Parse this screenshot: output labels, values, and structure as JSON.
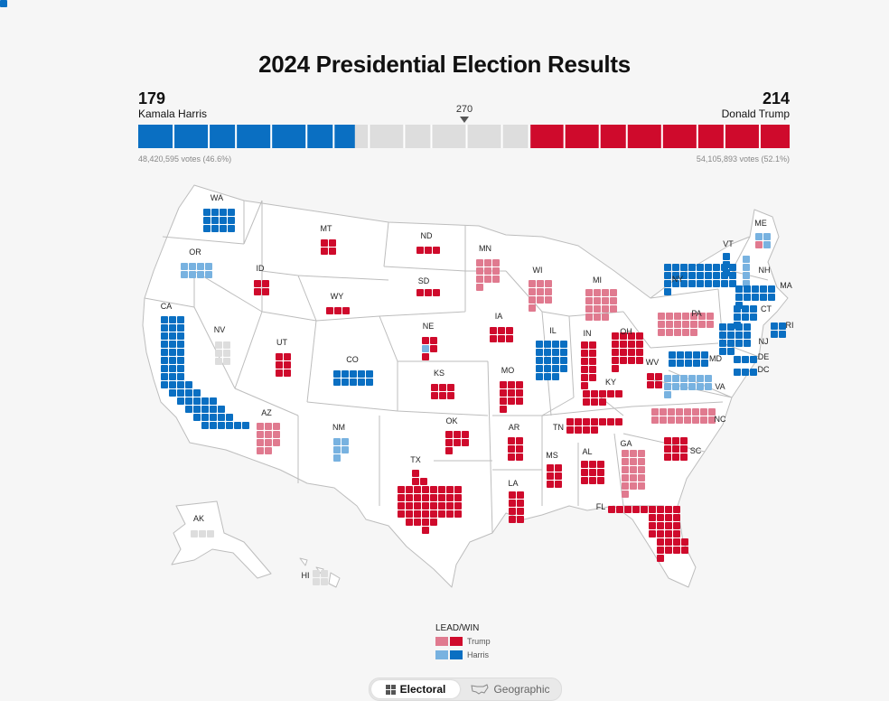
{
  "title": "2024 Presidential Election Results",
  "candidates": {
    "left": {
      "name": "Kamala Harris",
      "ev": "179",
      "votes": "48,420,595 votes (46.6%)",
      "color": "#0a6fc2"
    },
    "right": {
      "name": "Donald Trump",
      "ev": "214",
      "votes": "54,105,893 votes (52.1%)",
      "color": "#cf0a2c"
    }
  },
  "threshold": "270",
  "colors": {
    "trump_win": "#cf0a2c",
    "trump_lead": "#e07a8f",
    "harris_win": "#0a6fc2",
    "harris_lead": "#78b2e0",
    "undecided": "#dddddd",
    "map_fill": "#ffffff",
    "map_border": "#bdbdbd"
  },
  "bar_segments": [
    {
      "status": "harris_win",
      "ev": 179
    },
    {
      "status": "undecided",
      "ev": 145
    },
    {
      "status": "trump_win",
      "ev": 214
    }
  ],
  "states": [
    {
      "abbr": "WA",
      "ev": 12,
      "status": "harris_win"
    },
    {
      "abbr": "OR",
      "ev": 8,
      "status": "harris_lead"
    },
    {
      "abbr": "CA",
      "ev": 54,
      "status": "harris_win"
    },
    {
      "abbr": "NV",
      "ev": 6,
      "status": "undecided"
    },
    {
      "abbr": "ID",
      "ev": 4,
      "status": "trump_win"
    },
    {
      "abbr": "MT",
      "ev": 4,
      "status": "trump_win"
    },
    {
      "abbr": "WY",
      "ev": 3,
      "status": "trump_win"
    },
    {
      "abbr": "UT",
      "ev": 6,
      "status": "trump_win"
    },
    {
      "abbr": "AZ",
      "ev": 11,
      "status": "trump_lead"
    },
    {
      "abbr": "CO",
      "ev": 10,
      "status": "harris_win"
    },
    {
      "abbr": "NM",
      "ev": 5,
      "status": "harris_lead"
    },
    {
      "abbr": "ND",
      "ev": 3,
      "status": "trump_win"
    },
    {
      "abbr": "SD",
      "ev": 3,
      "status": "trump_win"
    },
    {
      "abbr": "NE",
      "ev": 5,
      "status": "mixed"
    },
    {
      "abbr": "KS",
      "ev": 6,
      "status": "trump_win"
    },
    {
      "abbr": "OK",
      "ev": 7,
      "status": "trump_win"
    },
    {
      "abbr": "TX",
      "ev": 40,
      "status": "trump_win"
    },
    {
      "abbr": "MN",
      "ev": 10,
      "status": "trump_lead"
    },
    {
      "abbr": "IA",
      "ev": 6,
      "status": "trump_win"
    },
    {
      "abbr": "MO",
      "ev": 10,
      "status": "trump_win"
    },
    {
      "abbr": "AR",
      "ev": 6,
      "status": "trump_win"
    },
    {
      "abbr": "LA",
      "ev": 8,
      "status": "trump_win"
    },
    {
      "abbr": "WI",
      "ev": 10,
      "status": "trump_lead"
    },
    {
      "abbr": "IL",
      "ev": 19,
      "status": "harris_win"
    },
    {
      "abbr": "MI",
      "ev": 15,
      "status": "trump_lead"
    },
    {
      "abbr": "IN",
      "ev": 11,
      "status": "trump_win"
    },
    {
      "abbr": "OH",
      "ev": 17,
      "status": "trump_win"
    },
    {
      "abbr": "KY",
      "ev": 8,
      "status": "trump_win"
    },
    {
      "abbr": "TN",
      "ev": 11,
      "status": "trump_win"
    },
    {
      "abbr": "MS",
      "ev": 6,
      "status": "trump_win"
    },
    {
      "abbr": "AL",
      "ev": 9,
      "status": "trump_win"
    },
    {
      "abbr": "GA",
      "ev": 16,
      "status": "trump_lead"
    },
    {
      "abbr": "FL",
      "ev": 30,
      "status": "trump_win"
    },
    {
      "abbr": "SC",
      "ev": 9,
      "status": "trump_win"
    },
    {
      "abbr": "NC",
      "ev": 16,
      "status": "trump_lead"
    },
    {
      "abbr": "VA",
      "ev": 13,
      "status": "harris_lead"
    },
    {
      "abbr": "WV",
      "ev": 4,
      "status": "trump_win"
    },
    {
      "abbr": "PA",
      "ev": 19,
      "status": "trump_lead"
    },
    {
      "abbr": "NY",
      "ev": 28,
      "status": "harris_win"
    },
    {
      "abbr": "VT",
      "ev": 3,
      "status": "harris_win"
    },
    {
      "abbr": "NH",
      "ev": 4,
      "status": "harris_lead"
    },
    {
      "abbr": "ME",
      "ev": 4,
      "status": "mixed"
    },
    {
      "abbr": "MA",
      "ev": 11,
      "status": "harris_win"
    },
    {
      "abbr": "RI",
      "ev": 4,
      "status": "harris_win"
    },
    {
      "abbr": "CT",
      "ev": 7,
      "status": "harris_win"
    },
    {
      "abbr": "NJ",
      "ev": 14,
      "status": "harris_win"
    },
    {
      "abbr": "DE",
      "ev": 3,
      "status": "harris_win"
    },
    {
      "abbr": "MD",
      "ev": 10,
      "status": "harris_win"
    },
    {
      "abbr": "DC",
      "ev": 3,
      "status": "harris_win"
    },
    {
      "abbr": "AK",
      "ev": 3,
      "status": "undecided"
    },
    {
      "abbr": "HI",
      "ev": 4,
      "status": "undecided"
    }
  ],
  "legend": {
    "title": "LEAD/WIN",
    "trump": "Trump",
    "harris": "Harris"
  },
  "toggle": {
    "electoral": "Electoral",
    "geographic": "Geographic",
    "selected": "Electoral"
  }
}
